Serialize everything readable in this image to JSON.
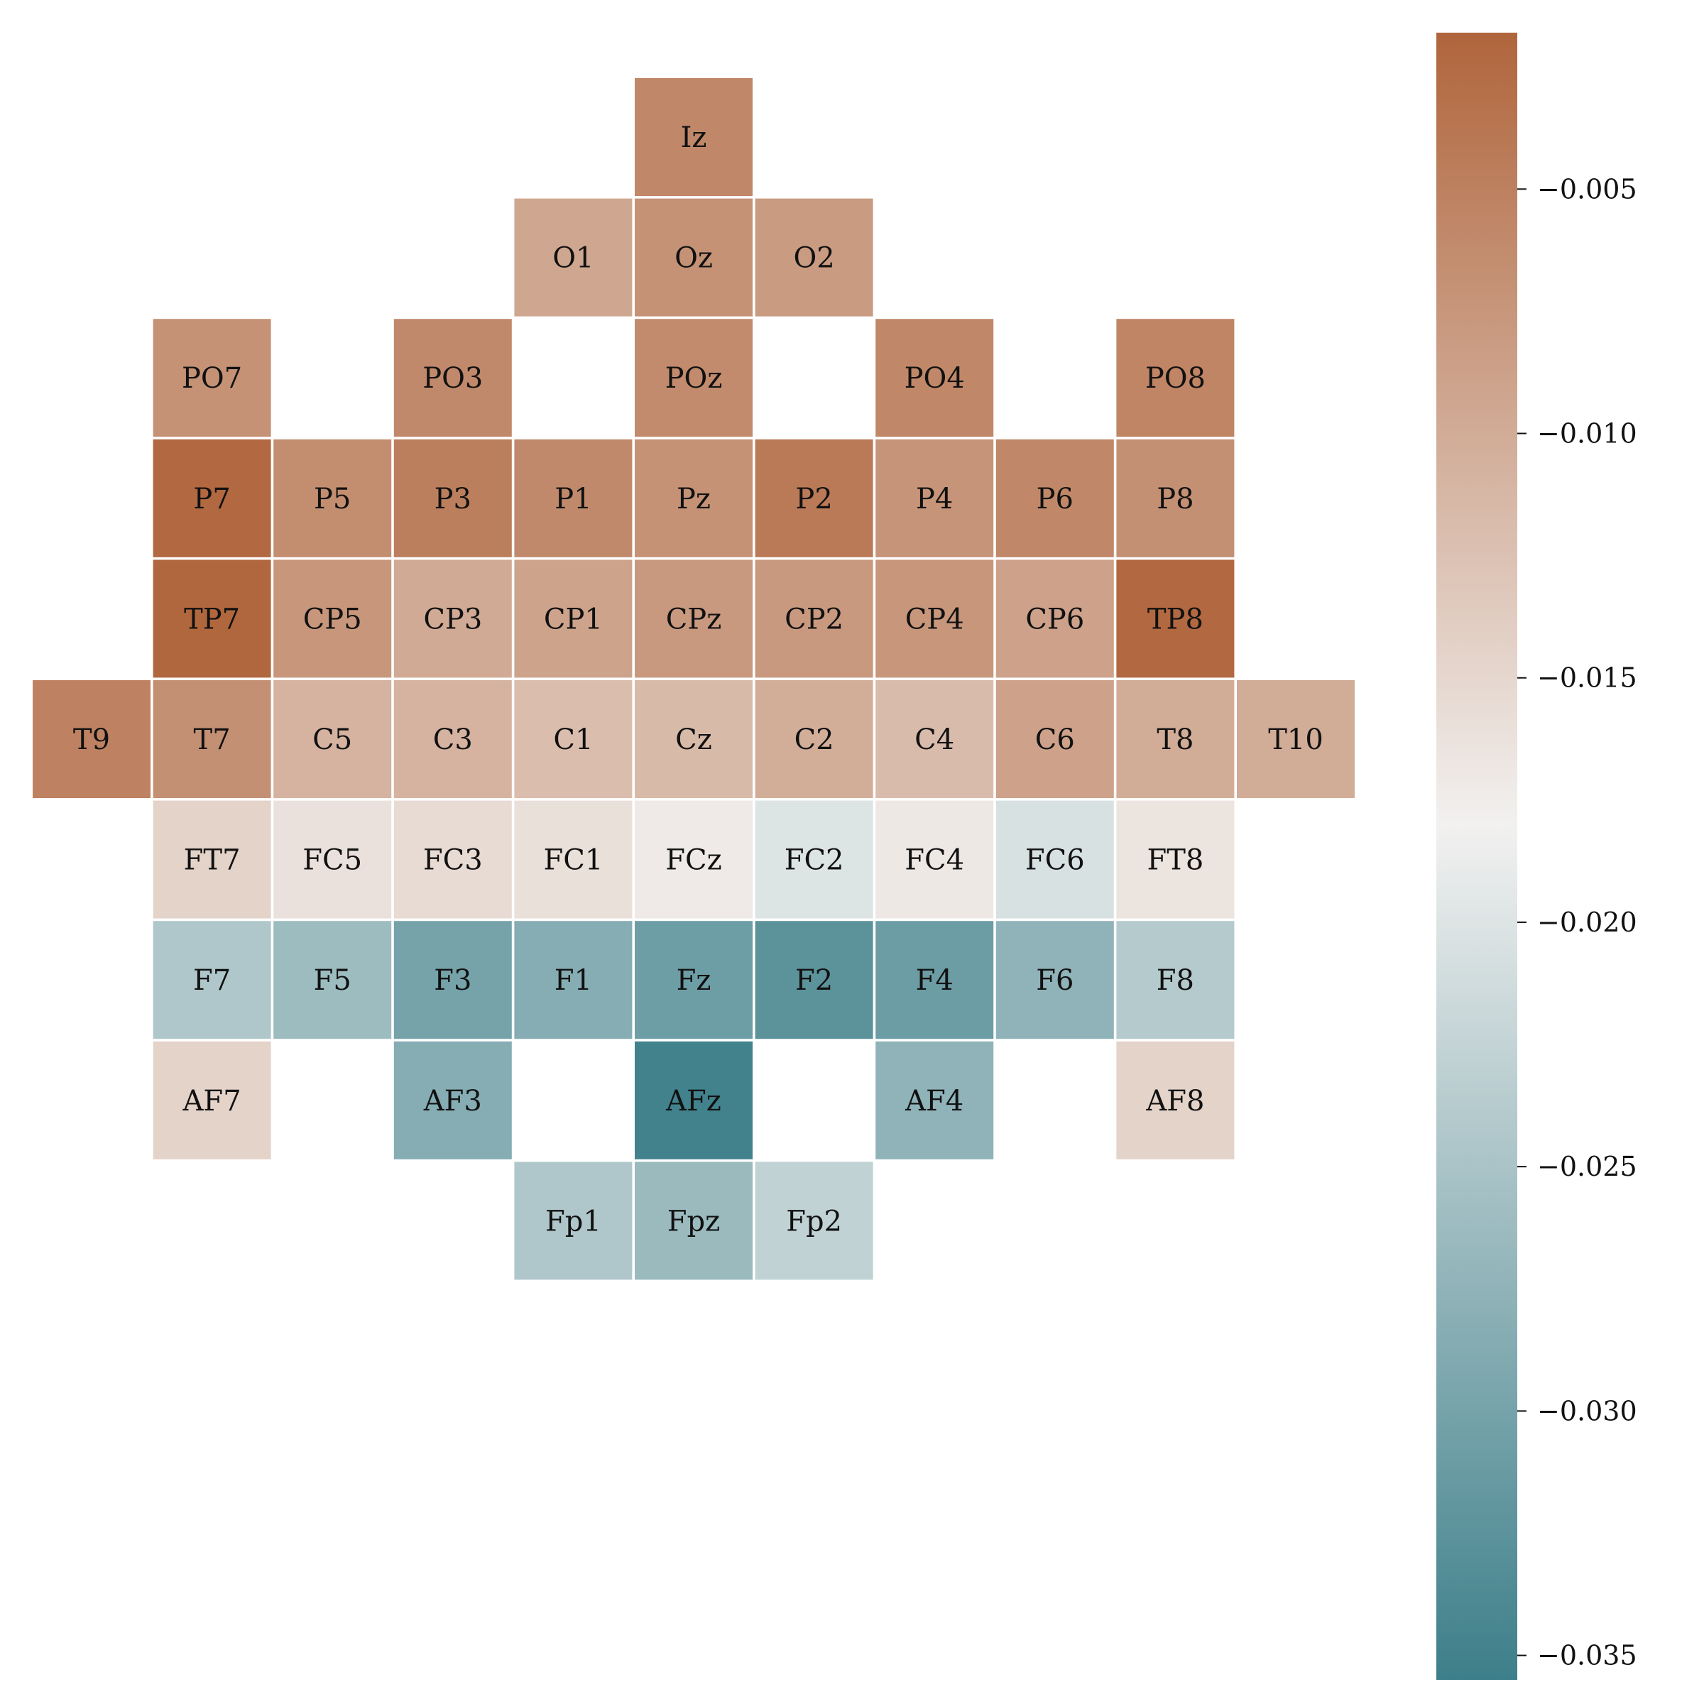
{
  "chart_data": {
    "type": "heatmap",
    "title": "",
    "xlabel": "",
    "ylabel": "",
    "grid": false,
    "legend_placement": "right",
    "colormap": {
      "type": "diverging",
      "low_color": "#3d7f8a",
      "mid_color": "#f2f1f0",
      "high_color": "#b0653c",
      "vmin": -0.0355,
      "vmax": -0.0018,
      "center": -0.018
    },
    "colorbar_ticks": [
      "−0.005",
      "−0.010",
      "−0.015",
      "−0.020",
      "−0.025",
      "−0.030",
      "−0.035"
    ],
    "colorbar_tick_values": [
      -0.005,
      -0.01,
      -0.015,
      -0.02,
      -0.025,
      -0.03,
      -0.035
    ],
    "grid_columns": 11,
    "grid_rows": 10,
    "cells": [
      {
        "label": "Iz",
        "row": 0,
        "col": 5,
        "value": -0.0058
      },
      {
        "label": "O1",
        "row": 1,
        "col": 4,
        "value": -0.0094
      },
      {
        "label": "Oz",
        "row": 1,
        "col": 5,
        "value": -0.007
      },
      {
        "label": "O2",
        "row": 1,
        "col": 6,
        "value": -0.008
      },
      {
        "label": "PO7",
        "row": 2,
        "col": 1,
        "value": -0.007
      },
      {
        "label": "PO3",
        "row": 2,
        "col": 3,
        "value": -0.006
      },
      {
        "label": "POz",
        "row": 2,
        "col": 5,
        "value": -0.0062
      },
      {
        "label": "PO4",
        "row": 2,
        "col": 7,
        "value": -0.0058
      },
      {
        "label": "PO8",
        "row": 2,
        "col": 9,
        "value": -0.0055
      },
      {
        "label": "P7",
        "row": 3,
        "col": 1,
        "value": -0.0022
      },
      {
        "label": "P5",
        "row": 3,
        "col": 2,
        "value": -0.0065
      },
      {
        "label": "P3",
        "row": 3,
        "col": 3,
        "value": -0.0048
      },
      {
        "label": "P1",
        "row": 3,
        "col": 4,
        "value": -0.006
      },
      {
        "label": "Pz",
        "row": 3,
        "col": 5,
        "value": -0.007
      },
      {
        "label": "P2",
        "row": 3,
        "col": 6,
        "value": -0.0042
      },
      {
        "label": "P4",
        "row": 3,
        "col": 7,
        "value": -0.0072
      },
      {
        "label": "P6",
        "row": 3,
        "col": 8,
        "value": -0.0058
      },
      {
        "label": "P8",
        "row": 3,
        "col": 9,
        "value": -0.0068
      },
      {
        "label": "TP7",
        "row": 4,
        "col": 1,
        "value": -0.002
      },
      {
        "label": "CP5",
        "row": 4,
        "col": 2,
        "value": -0.0075
      },
      {
        "label": "CP3",
        "row": 4,
        "col": 3,
        "value": -0.0098
      },
      {
        "label": "CP1",
        "row": 4,
        "col": 4,
        "value": -0.009
      },
      {
        "label": "CPz",
        "row": 4,
        "col": 5,
        "value": -0.0078
      },
      {
        "label": "CP2",
        "row": 4,
        "col": 6,
        "value": -0.0078
      },
      {
        "label": "CP4",
        "row": 4,
        "col": 7,
        "value": -0.0075
      },
      {
        "label": "CP6",
        "row": 4,
        "col": 8,
        "value": -0.0088
      },
      {
        "label": "TP8",
        "row": 4,
        "col": 9,
        "value": -0.0022
      },
      {
        "label": "T9",
        "row": 5,
        "col": 0,
        "value": -0.0052
      },
      {
        "label": "T7",
        "row": 5,
        "col": 1,
        "value": -0.0068
      },
      {
        "label": "C5",
        "row": 5,
        "col": 2,
        "value": -0.0108
      },
      {
        "label": "C3",
        "row": 5,
        "col": 3,
        "value": -0.0108
      },
      {
        "label": "C1",
        "row": 5,
        "col": 4,
        "value": -0.012
      },
      {
        "label": "Cz",
        "row": 5,
        "col": 5,
        "value": -0.0116
      },
      {
        "label": "C2",
        "row": 5,
        "col": 6,
        "value": -0.0102
      },
      {
        "label": "C4",
        "row": 5,
        "col": 7,
        "value": -0.0118
      },
      {
        "label": "C6",
        "row": 5,
        "col": 8,
        "value": -0.0088
      },
      {
        "label": "T8",
        "row": 5,
        "col": 9,
        "value": -0.01
      },
      {
        "label": "T10",
        "row": 5,
        "col": 10,
        "value": -0.01
      },
      {
        "label": "FT7",
        "row": 6,
        "col": 1,
        "value": -0.0145
      },
      {
        "label": "FC5",
        "row": 6,
        "col": 2,
        "value": -0.0162
      },
      {
        "label": "FC3",
        "row": 6,
        "col": 3,
        "value": -0.0155
      },
      {
        "label": "FC1",
        "row": 6,
        "col": 4,
        "value": -0.016
      },
      {
        "label": "FCz",
        "row": 6,
        "col": 5,
        "value": -0.0172
      },
      {
        "label": "FC2",
        "row": 6,
        "col": 6,
        "value": -0.02
      },
      {
        "label": "FC4",
        "row": 6,
        "col": 7,
        "value": -0.017
      },
      {
        "label": "FC6",
        "row": 6,
        "col": 8,
        "value": -0.0205
      },
      {
        "label": "FT8",
        "row": 6,
        "col": 9,
        "value": -0.0165
      },
      {
        "label": "F7",
        "row": 7,
        "col": 1,
        "value": -0.0245
      },
      {
        "label": "F5",
        "row": 7,
        "col": 2,
        "value": -0.0262
      },
      {
        "label": "F3",
        "row": 7,
        "col": 3,
        "value": -0.03
      },
      {
        "label": "F1",
        "row": 7,
        "col": 4,
        "value": -0.0285
      },
      {
        "label": "Fz",
        "row": 7,
        "col": 5,
        "value": -0.0308
      },
      {
        "label": "F2",
        "row": 7,
        "col": 6,
        "value": -0.0325
      },
      {
        "label": "F4",
        "row": 7,
        "col": 7,
        "value": -0.031
      },
      {
        "label": "F6",
        "row": 7,
        "col": 8,
        "value": -0.0275
      },
      {
        "label": "F8",
        "row": 7,
        "col": 9,
        "value": -0.024
      },
      {
        "label": "AF7",
        "row": 8,
        "col": 1,
        "value": -0.0145
      },
      {
        "label": "AF3",
        "row": 8,
        "col": 3,
        "value": -0.0285
      },
      {
        "label": "AFz",
        "row": 8,
        "col": 5,
        "value": -0.035
      },
      {
        "label": "AF4",
        "row": 8,
        "col": 7,
        "value": -0.0275
      },
      {
        "label": "AF8",
        "row": 8,
        "col": 9,
        "value": -0.0145
      },
      {
        "label": "Fp1",
        "row": 9,
        "col": 4,
        "value": -0.0245
      },
      {
        "label": "Fpz",
        "row": 9,
        "col": 5,
        "value": -0.0265
      },
      {
        "label": "Fp2",
        "row": 9,
        "col": 6,
        "value": -0.0228
      }
    ]
  }
}
